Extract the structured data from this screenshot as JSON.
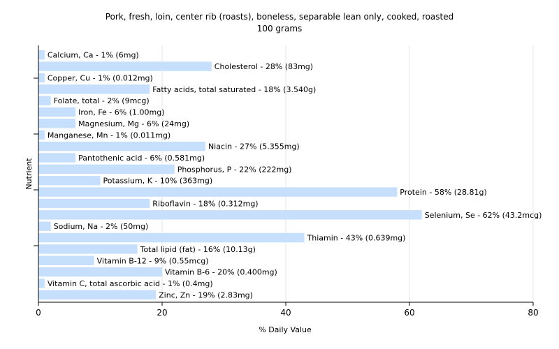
{
  "chart_data": {
    "type": "bar",
    "orientation": "horizontal",
    "title": "Pork, fresh, loin, center rib (roasts), boneless, separable lean only, cooked, roasted",
    "subtitle": "100 grams",
    "xlabel": "% Daily Value",
    "ylabel": "Nutrient",
    "xlim": [
      0,
      80
    ],
    "xticks": [
      0,
      20,
      40,
      60,
      80
    ],
    "grid": "vertical",
    "colors": {
      "bar": "#c6dffc",
      "grid": "#e6e6e6",
      "axis": "#000000"
    },
    "categories": [
      "Calcium, Ca",
      "Cholesterol",
      "Copper, Cu",
      "Fatty acids, total saturated",
      "Folate, total",
      "Iron, Fe",
      "Magnesium, Mg",
      "Manganese, Mn",
      "Niacin",
      "Pantothenic acid",
      "Phosphorus, P",
      "Potassium, K",
      "Protein",
      "Riboflavin",
      "Selenium, Se",
      "Sodium, Na",
      "Thiamin",
      "Total lipid (fat)",
      "Vitamin B-12",
      "Vitamin B-6",
      "Vitamin C, total ascorbic acid",
      "Zinc, Zn"
    ],
    "values": [
      1,
      28,
      1,
      18,
      2,
      6,
      6,
      1,
      27,
      6,
      22,
      10,
      58,
      18,
      62,
      2,
      43,
      16,
      9,
      20,
      1,
      19
    ],
    "labels": [
      "Calcium, Ca - 1% (6mg)",
      "Cholesterol - 28% (83mg)",
      "Copper, Cu - 1% (0.012mg)",
      "Fatty acids, total saturated - 18% (3.540g)",
      "Folate, total - 2% (9mcg)",
      "Iron, Fe - 6% (1.00mg)",
      "Magnesium, Mg - 6% (24mg)",
      "Manganese, Mn - 1% (0.011mg)",
      "Niacin - 27% (5.355mg)",
      "Pantothenic acid - 6% (0.581mg)",
      "Phosphorus, P - 22% (222mg)",
      "Potassium, K - 10% (363mg)",
      "Protein - 58% (28.81g)",
      "Riboflavin - 18% (0.312mg)",
      "Selenium, Se - 62% (43.2mcg)",
      "Sodium, Na - 2% (50mg)",
      "Thiamin - 43% (0.639mg)",
      "Total lipid (fat) - 16% (10.13g)",
      "Vitamin B-12 - 9% (0.55mcg)",
      "Vitamin B-6 - 20% (0.400mg)",
      "Vitamin C, total ascorbic acid - 1% (0.4mg)",
      "Zinc, Zn - 19% (2.83mg)"
    ]
  }
}
